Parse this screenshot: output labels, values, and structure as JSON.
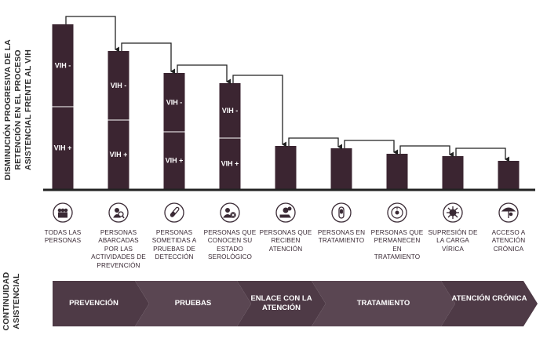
{
  "y_title_1": "DISMINUCIÓN PROGRESIVA DE LA RETENCIÓN EN EL PROCESO ASISTENCIAL FRENTE AL VIH",
  "y_title_2": "CONTINUIDAD ASISTENCIAL",
  "chart_data": {
    "type": "bar",
    "categories": [
      "TODAS LAS PERSONAS",
      "PERSONAS ABARCADAS POR LAS ACTIVIDADES DE PREVENCIÓN",
      "PERSONAS SOMETIDAS A PRUEBAS DE DETECCIÓN",
      "PERSONAS QUE CONOCEN SU ESTADO SEROLÓGICO",
      "PERSONAS QUE RECIBEN ATENCIÓN",
      "PERSONAS EN TRATAMIENTO",
      "PERSONAS QUE PERMANECEN EN TRATAMIENTO",
      "SUPRESIÓN DE LA CARGA VÍRICA",
      "ACCESO A ATENCIÓN CRÓNICA"
    ],
    "series": [
      {
        "name": "VIH -",
        "values": [
          105,
          88,
          75,
          70,
          0,
          0,
          0,
          0,
          0
        ]
      },
      {
        "name": "VIH +",
        "values": [
          105,
          88,
          73,
          65,
          55,
          52,
          45,
          42,
          36
        ]
      }
    ],
    "segment_labels": [
      "VIH -",
      "VIH +"
    ],
    "ylim": [
      0,
      215
    ],
    "stacked": true,
    "bar_color": "#3b2531",
    "divider_color": "#ffffff",
    "arrow_color": "#222222",
    "icons": [
      "people-icon",
      "search-person-icon",
      "test-tube-icon",
      "person-status-icon",
      "hand-care-icon",
      "pill-icon",
      "clock-pill-icon",
      "virus-icon",
      "umbrella-person-icon"
    ]
  },
  "continuum": {
    "stages": [
      "PREVENCIÓN",
      "PRUEBAS",
      "ENLACE CON LA ATENCIÓN",
      "TRATAMIENTO",
      "ATENCIÓN CRÓNICA"
    ],
    "colors": [
      "#4e3a46",
      "#5a4652"
    ]
  }
}
